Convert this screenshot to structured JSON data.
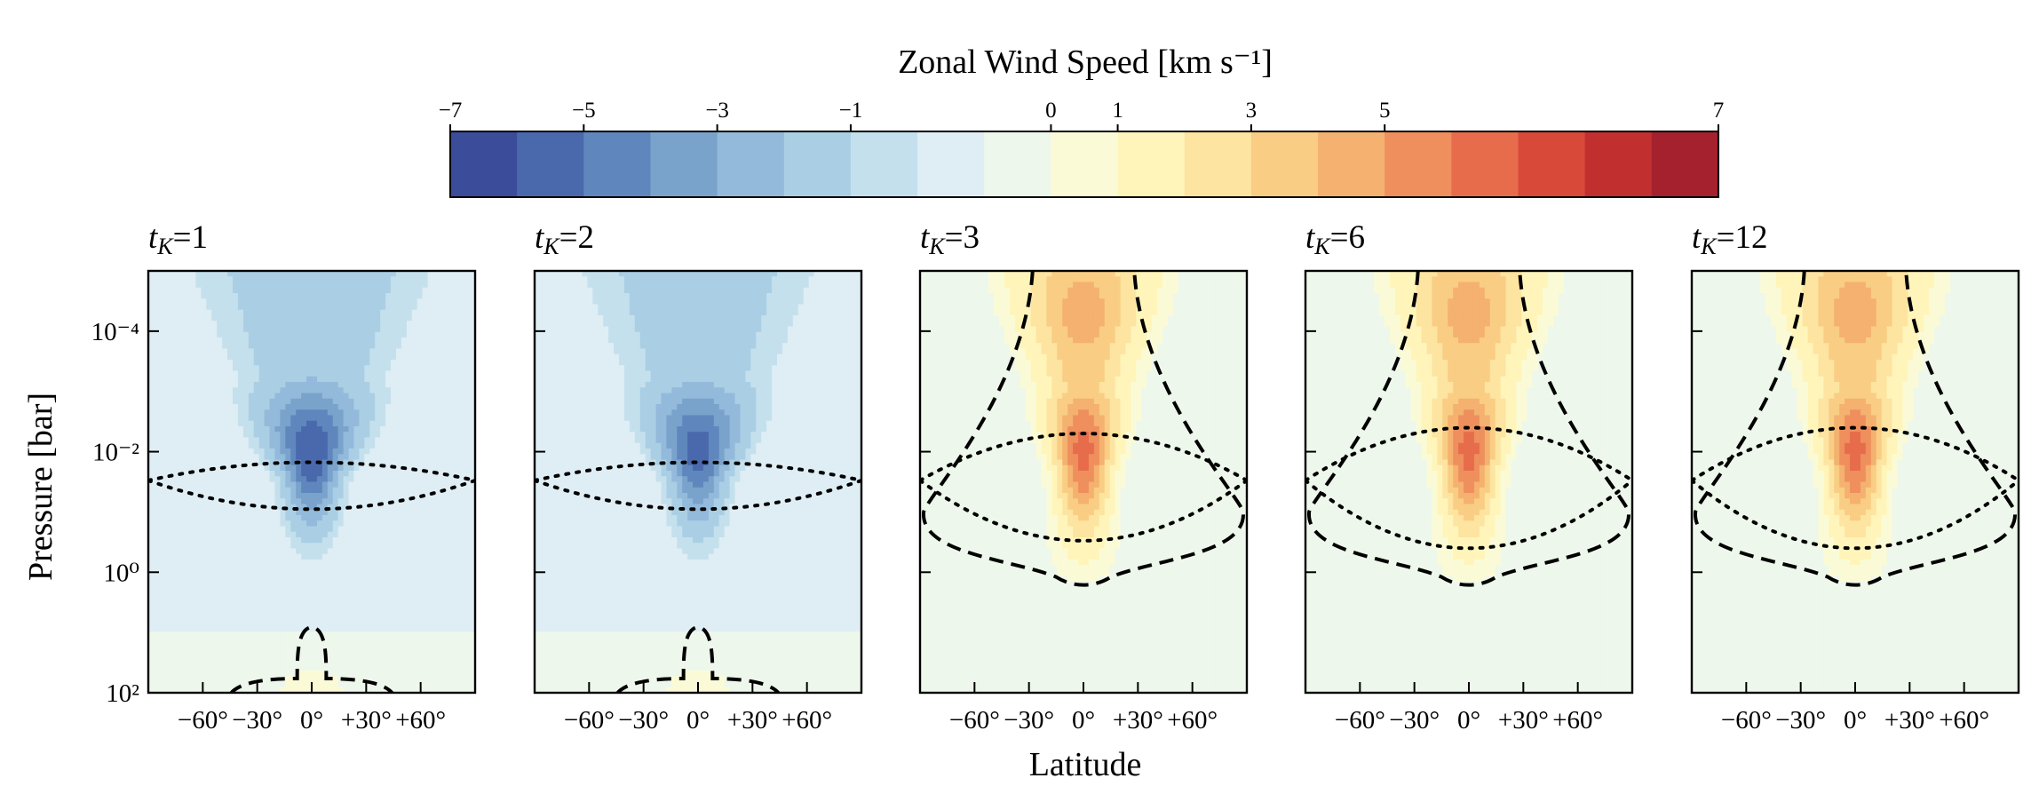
{
  "chart_data": {
    "type": "heatmap",
    "colorbar": {
      "title": "Zonal Wind Speed [km s⁻¹]",
      "ticks": [
        -7,
        -5,
        -3,
        -1,
        0,
        1,
        3,
        5,
        7
      ],
      "tick_labels": [
        "−7",
        "−5",
        "−3",
        "−1",
        "0",
        "1",
        "3",
        "5",
        "7"
      ],
      "bounds": [
        -7,
        -6,
        -5,
        -4,
        -3,
        -2,
        -1,
        -0.5,
        0,
        0.5,
        1,
        2,
        3,
        4,
        5,
        6,
        7
      ],
      "colors": [
        "#3a4c9a",
        "#4a69ad",
        "#5f87bd",
        "#7aa3cc",
        "#93badb",
        "#aacfe4",
        "#c5e0ed",
        "#dfeef4",
        "#eef7eb",
        "#fafbd6",
        "#fff5bb",
        "#fde4a0",
        "#f9cd84",
        "#f4b16f",
        "#ee8f5d",
        "#e66c4b",
        "#d8493a",
        "#c22f2f",
        "#a5212e"
      ]
    },
    "xlabel": "Latitude",
    "ylabel": "Pressure [bar]",
    "x_ticks": [
      "−60°",
      "−30°",
      "0°",
      "+30°",
      "+60°"
    ],
    "x_tick_values": [
      -60,
      -30,
      0,
      30,
      60
    ],
    "xlim": [
      -90,
      90
    ],
    "y_scale": "log",
    "y_inverted": true,
    "ylim_bar": [
      100,
      1e-05
    ],
    "y_tick_labels": [
      "10⁻⁴",
      "10⁻²",
      "10⁰",
      "10²"
    ],
    "y_tick_values": [
      0.0001,
      0.01,
      1,
      100
    ],
    "panels": [
      {
        "title": "t",
        "subscript": "K",
        "suffix": "=1",
        "sign": -1,
        "peak_speed": 6.0,
        "jet_center_bar": 0.01,
        "core_halfwidth_deg": 8,
        "dashed_zero_contour": "lower",
        "dotted_photosphere_bar": [
          0.015,
          0.09
        ]
      },
      {
        "title": "t",
        "subscript": "K",
        "suffix": "=2",
        "sign": -1,
        "peak_speed": 5.5,
        "jet_center_bar": 0.01,
        "core_halfwidth_deg": 8,
        "dashed_zero_contour": "lower",
        "dotted_photosphere_bar": [
          0.015,
          0.09
        ]
      },
      {
        "title": "t",
        "subscript": "K",
        "suffix": "=3",
        "sign": 1,
        "peak_speed": 6.5,
        "jet_center_bar": 0.01,
        "core_halfwidth_deg": 10,
        "dashed_zero_contour": "envelope",
        "dotted_photosphere_bar": [
          0.005,
          0.3
        ]
      },
      {
        "title": "t",
        "subscript": "K",
        "suffix": "=6",
        "sign": 1,
        "peak_speed": 6.5,
        "jet_center_bar": 0.01,
        "core_halfwidth_deg": 10,
        "dashed_zero_contour": "envelope",
        "dotted_photosphere_bar": [
          0.004,
          0.4
        ]
      },
      {
        "title": "t",
        "subscript": "K",
        "suffix": "=12",
        "sign": 1,
        "peak_speed": 6.5,
        "jet_center_bar": 0.01,
        "core_halfwidth_deg": 10,
        "dashed_zero_contour": "envelope",
        "dotted_photosphere_bar": [
          0.004,
          0.4
        ]
      }
    ]
  }
}
